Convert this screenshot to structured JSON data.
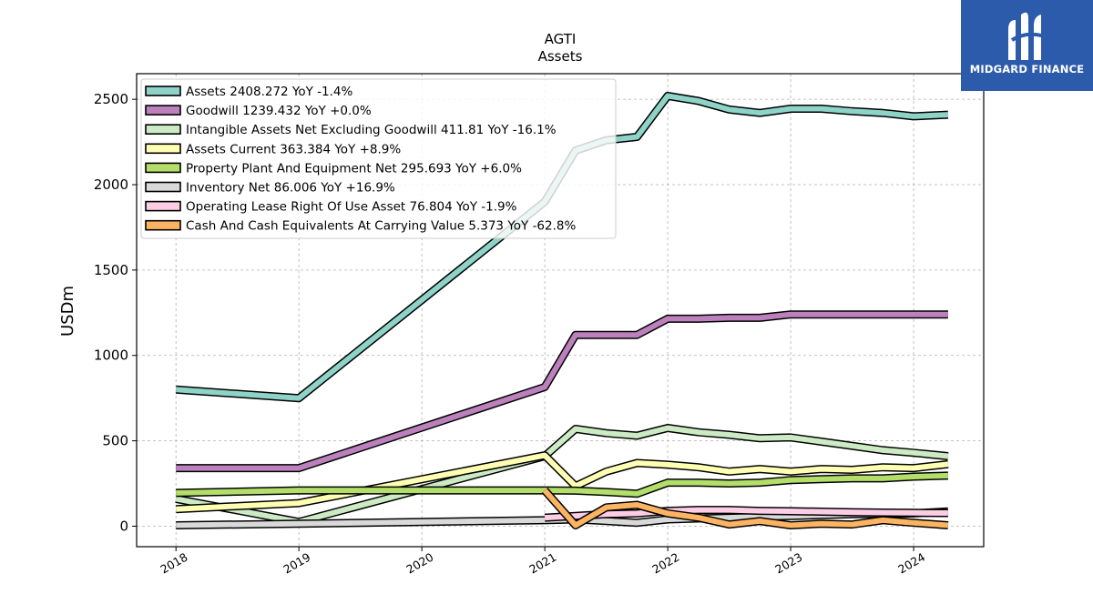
{
  "chart_data": {
    "type": "line",
    "title": "AGTI",
    "subtitle": "Assets",
    "ylabel": "USDm",
    "xlabel": "",
    "xlim": [
      2017.68,
      2024.57
    ],
    "ylim": [
      -120,
      2650
    ],
    "xticks": [
      "2018",
      "2019",
      "2020",
      "2021",
      "2022",
      "2023",
      "2024"
    ],
    "yticks": [
      0,
      500,
      1000,
      1500,
      2000,
      2500
    ],
    "grid": true,
    "legend_position": "top-left",
    "series": [
      {
        "name": "Assets",
        "legend": "Assets  2408.272 YoY -1.4%",
        "color": "#8dd3c7",
        "points": [
          [
            2018,
            800
          ],
          [
            2019,
            750
          ],
          [
            2021,
            1900
          ],
          [
            2021.25,
            2200
          ],
          [
            2021.5,
            2260
          ],
          [
            2021.75,
            2280
          ],
          [
            2022,
            2520
          ],
          [
            2022.25,
            2490
          ],
          [
            2022.5,
            2440
          ],
          [
            2022.75,
            2420
          ],
          [
            2023,
            2445
          ],
          [
            2023.25,
            2445
          ],
          [
            2023.5,
            2430
          ],
          [
            2023.75,
            2420
          ],
          [
            2024,
            2400
          ],
          [
            2024.28,
            2410
          ]
        ]
      },
      {
        "name": "Goodwill",
        "legend": "Goodwill  1239.432 YoY +0.0%",
        "color": "#bc80bd",
        "points": [
          [
            2018,
            340
          ],
          [
            2019,
            340
          ],
          [
            2021,
            815
          ],
          [
            2021.25,
            1120
          ],
          [
            2021.5,
            1120
          ],
          [
            2021.75,
            1120
          ],
          [
            2022,
            1215
          ],
          [
            2022.25,
            1215
          ],
          [
            2022.5,
            1220
          ],
          [
            2022.75,
            1220
          ],
          [
            2023,
            1240
          ],
          [
            2023.25,
            1240
          ],
          [
            2023.5,
            1240
          ],
          [
            2023.75,
            1240
          ],
          [
            2024,
            1240
          ],
          [
            2024.28,
            1240
          ]
        ]
      },
      {
        "name": "Intangible Assets Net Excluding Goodwill",
        "legend": "Intangible Assets Net Excluding Goodwill  411.81 YoY -16.1%",
        "color": "#ccebc5",
        "points": [
          [
            2018,
            160
          ],
          [
            2019,
            25
          ],
          [
            2021,
            410
          ],
          [
            2021.25,
            570
          ],
          [
            2021.5,
            545
          ],
          [
            2021.75,
            530
          ],
          [
            2022,
            575
          ],
          [
            2022.25,
            550
          ],
          [
            2022.5,
            535
          ],
          [
            2022.75,
            515
          ],
          [
            2023,
            520
          ],
          [
            2023.25,
            495
          ],
          [
            2023.5,
            470
          ],
          [
            2023.75,
            445
          ],
          [
            2024,
            430
          ],
          [
            2024.28,
            410
          ]
        ]
      },
      {
        "name": "Assets Current",
        "legend": "Assets Current  363.384 YoY +8.9%",
        "color": "#ffffb3",
        "points": [
          [
            2018,
            100
          ],
          [
            2019,
            135
          ],
          [
            2021,
            415
          ],
          [
            2021.25,
            235
          ],
          [
            2021.5,
            320
          ],
          [
            2021.75,
            370
          ],
          [
            2022,
            360
          ],
          [
            2022.25,
            345
          ],
          [
            2022.5,
            320
          ],
          [
            2022.75,
            335
          ],
          [
            2023,
            320
          ],
          [
            2023.25,
            335
          ],
          [
            2023.5,
            330
          ],
          [
            2023.75,
            345
          ],
          [
            2024,
            340
          ],
          [
            2024.28,
            363
          ]
        ]
      },
      {
        "name": "Property Plant And Equipment Net",
        "legend": "Property Plant And Equipment Net  295.693 YoY +6.0%",
        "color": "#b3de69",
        "points": [
          [
            2018,
            195
          ],
          [
            2019,
            210
          ],
          [
            2021,
            210
          ],
          [
            2021.25,
            208
          ],
          [
            2021.5,
            200
          ],
          [
            2021.75,
            190
          ],
          [
            2022,
            255
          ],
          [
            2022.25,
            255
          ],
          [
            2022.5,
            250
          ],
          [
            2022.75,
            255
          ],
          [
            2023,
            270
          ],
          [
            2023.25,
            275
          ],
          [
            2023.5,
            280
          ],
          [
            2023.75,
            280
          ],
          [
            2024,
            290
          ],
          [
            2024.28,
            296
          ]
        ]
      },
      {
        "name": "Inventory Net",
        "legend": "Inventory Net  86.006 YoY +16.9%",
        "color": "#d9d9d9",
        "points": [
          [
            2018,
            5
          ],
          [
            2019,
            15
          ],
          [
            2021,
            35
          ],
          [
            2021.25,
            40
          ],
          [
            2021.5,
            30
          ],
          [
            2021.75,
            20
          ],
          [
            2022,
            40
          ],
          [
            2022.25,
            45
          ],
          [
            2022.5,
            50
          ],
          [
            2022.75,
            55
          ],
          [
            2023,
            60
          ],
          [
            2023.25,
            65
          ],
          [
            2023.5,
            70
          ],
          [
            2023.75,
            72
          ],
          [
            2024,
            75
          ],
          [
            2024.28,
            86
          ]
        ]
      },
      {
        "name": "Operating Lease Right Of Use Asset",
        "legend": "Operating Lease Right Of Use Asset  76.804 YoY -1.9%",
        "color": "#fccde5",
        "points": [
          [
            2021,
            50
          ],
          [
            2021.25,
            60
          ],
          [
            2021.5,
            70
          ],
          [
            2021.75,
            75
          ],
          [
            2022,
            90
          ],
          [
            2022.25,
            95
          ],
          [
            2022.5,
            95
          ],
          [
            2022.75,
            90
          ],
          [
            2023,
            88
          ],
          [
            2023.25,
            85
          ],
          [
            2023.5,
            82
          ],
          [
            2023.75,
            80
          ],
          [
            2024,
            78
          ],
          [
            2024.28,
            77
          ]
        ]
      },
      {
        "name": "Cash And Cash Equivalents At Carrying Value",
        "legend": "Cash And Cash Equivalents At Carrying Value  5.373 YoY -62.8%",
        "color": "#fdb462",
        "points": [
          [
            2021,
            210
          ],
          [
            2021.25,
            5
          ],
          [
            2021.5,
            110
          ],
          [
            2021.75,
            125
          ],
          [
            2022,
            75
          ],
          [
            2022.25,
            50
          ],
          [
            2022.5,
            10
          ],
          [
            2022.75,
            30
          ],
          [
            2023,
            5
          ],
          [
            2023.25,
            15
          ],
          [
            2023.5,
            10
          ],
          [
            2023.75,
            35
          ],
          [
            2024,
            20
          ],
          [
            2024.28,
            5
          ]
        ]
      }
    ]
  },
  "logo": {
    "text": "MIDGARD FINANCE"
  }
}
